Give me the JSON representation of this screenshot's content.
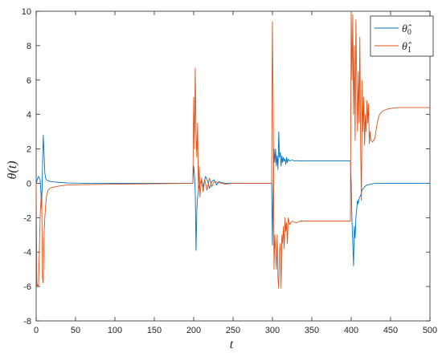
{
  "chart_data": {
    "type": "line",
    "title": "",
    "xlabel": "t",
    "ylabel": "θ(t)",
    "xlim": [
      0,
      500
    ],
    "ylim": [
      -8,
      10
    ],
    "xticks": [
      0,
      50,
      100,
      150,
      200,
      250,
      300,
      350,
      400,
      450,
      500
    ],
    "yticks": [
      -8,
      -6,
      -4,
      -2,
      0,
      2,
      4,
      6,
      8,
      10
    ],
    "grid": false,
    "legend_position": "top-right",
    "series": [
      {
        "name": "θ̂0",
        "legend_main": "θ̂",
        "legend_sub": "0",
        "color": "#0072BD",
        "x": [
          0,
          2,
          3,
          5,
          6,
          7,
          8,
          9,
          10,
          11,
          12,
          13,
          15,
          18,
          22,
          30,
          40,
          60,
          100,
          150,
          199,
          200,
          201,
          202,
          203,
          204,
          205,
          206,
          208,
          210,
          212,
          215,
          218,
          220,
          223,
          226,
          229,
          232,
          235,
          240,
          245,
          250,
          260,
          280,
          299,
          300,
          301,
          302,
          303,
          304,
          305,
          306,
          307,
          308,
          309,
          310,
          311,
          312,
          313,
          314,
          315,
          316,
          317,
          318,
          319,
          320,
          322,
          325,
          328,
          332,
          336,
          340,
          350,
          370,
          399,
          400,
          401,
          402,
          403,
          404,
          405,
          406,
          407,
          408,
          409,
          410,
          412,
          414,
          417,
          420,
          425,
          430,
          440,
          460,
          500
        ],
        "y": [
          0,
          0.3,
          0.4,
          0.2,
          -0.5,
          -1.5,
          0.8,
          2.8,
          1.8,
          0.6,
          0.3,
          0.2,
          0.15,
          0.1,
          0.08,
          0.05,
          0.02,
          0,
          0,
          0,
          0,
          1.0,
          0.5,
          -0.5,
          -3.9,
          -1.5,
          -0.8,
          -0.4,
          0,
          0.2,
          -0.2,
          0.4,
          0.1,
          -0.3,
          0.1,
          0.2,
          -0.1,
          0.1,
          0.05,
          0,
          0,
          0,
          0,
          0,
          0,
          -3.6,
          0,
          2.0,
          1.2,
          2.0,
          1.0,
          1.6,
          0.8,
          3.0,
          1.5,
          1.8,
          1.0,
          1.6,
          1.2,
          1.5,
          1.3,
          1.4,
          1.1,
          1.5,
          1.2,
          1.4,
          1.3,
          1.35,
          1.3,
          1.32,
          1.3,
          1.3,
          1.3,
          1.3,
          1.3,
          0,
          -2.2,
          -3.5,
          -4.8,
          -2.5,
          -3.2,
          -2.0,
          -1.5,
          -1.0,
          -1.2,
          -0.9,
          -0.7,
          -0.4,
          -0.2,
          -0.1,
          -0.05,
          0,
          0,
          0,
          0
        ]
      },
      {
        "name": "θ̂1",
        "legend_main": "θ̂",
        "legend_sub": "1",
        "color": "#D95319",
        "x": [
          0,
          1,
          2,
          3,
          4,
          5,
          6,
          7,
          8,
          9,
          10,
          11,
          12,
          13,
          14,
          15,
          17,
          20,
          25,
          30,
          40,
          60,
          100,
          150,
          199,
          200,
          201,
          202,
          203,
          204,
          205,
          206,
          207,
          208,
          210,
          212,
          214,
          217,
          220,
          223,
          226,
          230,
          235,
          240,
          250,
          270,
          299,
          300,
          301,
          302,
          303,
          304,
          305,
          306,
          307,
          308,
          309,
          310,
          311,
          312,
          313,
          314,
          315,
          316,
          317,
          318,
          319,
          320,
          322,
          325,
          330,
          335,
          340,
          360,
          380,
          399,
          400,
          401,
          402,
          403,
          404,
          405,
          406,
          407,
          408,
          409,
          410,
          411,
          412,
          413,
          414,
          415,
          416,
          417,
          418,
          419,
          420,
          421,
          422,
          423,
          424,
          425,
          427,
          430,
          433,
          436,
          440,
          445,
          450,
          460,
          480,
          500
        ],
        "y": [
          0,
          -6.0,
          -5.9,
          -6.0,
          -4.0,
          -2.0,
          -1.0,
          -0.5,
          -5.5,
          -5.8,
          -3.0,
          -2.0,
          -1.3,
          -0.8,
          -0.6,
          -0.4,
          -0.3,
          -0.25,
          -0.2,
          -0.15,
          -0.1,
          -0.08,
          -0.05,
          -0.03,
          0,
          5.0,
          2.0,
          6.7,
          3.0,
          1.5,
          3.5,
          -0.5,
          1.0,
          -0.8,
          0.3,
          -0.5,
          0.2,
          -0.4,
          0.3,
          -0.2,
          0.1,
          0.05,
          0,
          -0.05,
          0,
          0,
          0,
          9.4,
          4.0,
          -5.0,
          -3.0,
          -4.0,
          -5.0,
          -3.0,
          -5.5,
          -6.1,
          -4.0,
          -3.5,
          -6.1,
          -3.0,
          -3.5,
          -2.5,
          -3.8,
          -2.0,
          -2.8,
          -2.3,
          -3.5,
          -2.0,
          -2.4,
          -2.2,
          -2.3,
          -2.2,
          -2.2,
          -2.2,
          -2.2,
          -2.2,
          10.0,
          6.0,
          9.8,
          4.0,
          8.0,
          2.5,
          9.5,
          6.0,
          3.0,
          6.5,
          3.5,
          8.5,
          2.0,
          -1.0,
          6.0,
          3.0,
          5.0,
          2.2,
          4.0,
          3.0,
          4.8,
          3.5,
          4.6,
          2.3,
          3.0,
          2.5,
          2.4,
          2.6,
          3.5,
          4.0,
          4.2,
          4.3,
          4.35,
          4.4,
          4.4,
          4.4
        ]
      }
    ]
  }
}
